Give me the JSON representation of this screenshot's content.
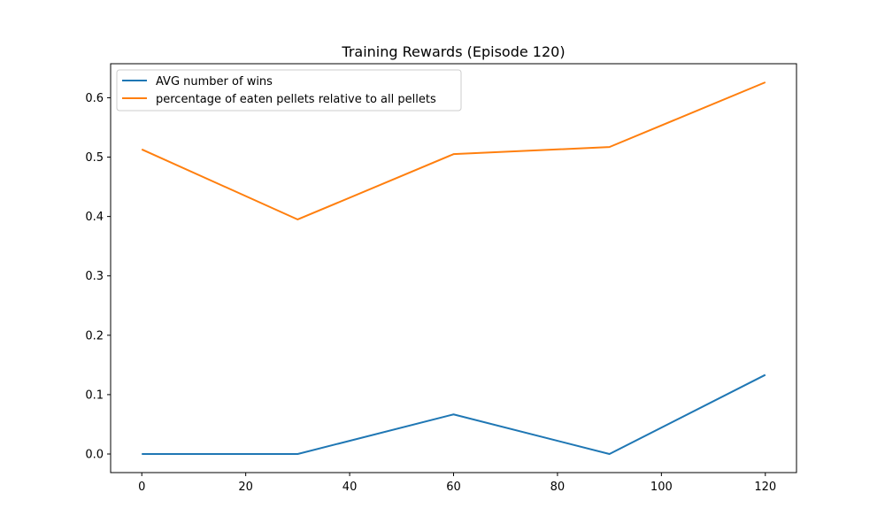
{
  "chart_data": {
    "type": "line",
    "title": "Training Rewards (Episode 120)",
    "xlabel": "",
    "ylabel": "",
    "x": [
      0,
      30,
      60,
      90,
      120
    ],
    "series": [
      {
        "name": "AVG number of wins",
        "color": "#1f77b4",
        "values": [
          0.0,
          0.0,
          0.0667,
          0.0,
          0.1333
        ]
      },
      {
        "name": "percentage of eaten pellets relative to all pellets",
        "color": "#ff7f0e",
        "values": [
          0.513,
          0.395,
          0.505,
          0.517,
          0.626
        ]
      }
    ],
    "xlim": [
      -6,
      126
    ],
    "ylim": [
      -0.0313,
      0.6573
    ],
    "xticks": [
      0,
      20,
      40,
      60,
      80,
      100,
      120
    ],
    "xtick_labels": [
      "0",
      "20",
      "40",
      "60",
      "80",
      "100",
      "120"
    ],
    "yticks": [
      0.0,
      0.1,
      0.2,
      0.3,
      0.4,
      0.5,
      0.6
    ],
    "ytick_labels": [
      "0.0",
      "0.1",
      "0.2",
      "0.3",
      "0.4",
      "0.5",
      "0.6"
    ],
    "grid": false,
    "legend_position": "upper-left"
  }
}
